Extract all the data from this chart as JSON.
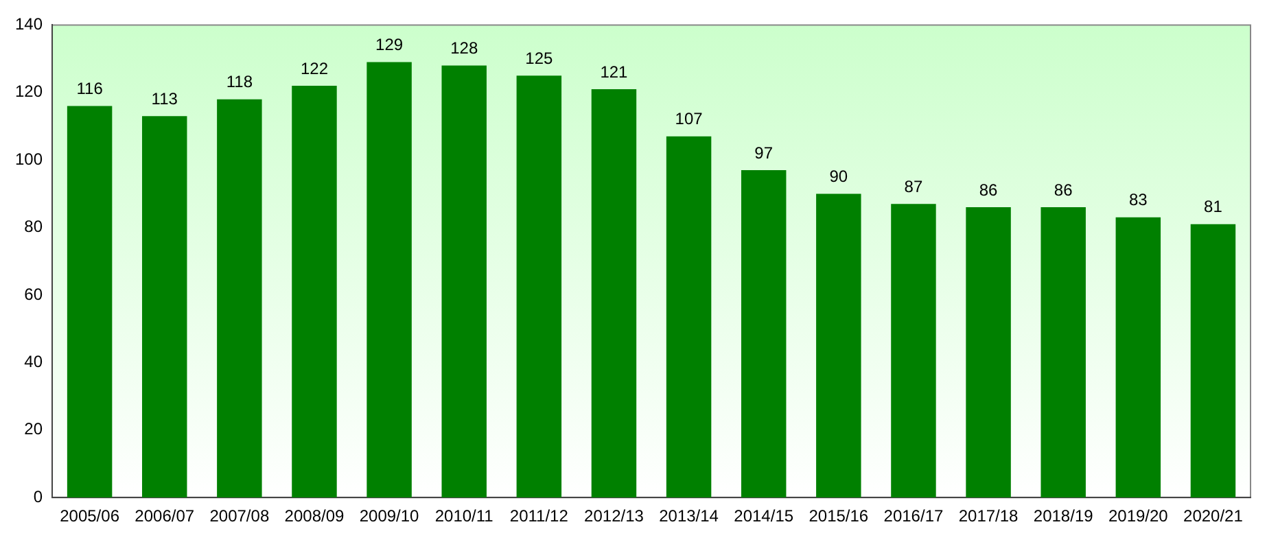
{
  "chart_data": {
    "type": "bar",
    "categories": [
      "2005/06",
      "2006/07",
      "2007/08",
      "2008/09",
      "2009/10",
      "2010/11",
      "2011/12",
      "2012/13",
      "2013/14",
      "2014/15",
      "2015/16",
      "2016/17",
      "2017/18",
      "2018/19",
      "2019/20",
      "2020/21"
    ],
    "values": [
      116,
      113,
      118,
      122,
      129,
      128,
      125,
      121,
      107,
      97,
      90,
      87,
      86,
      86,
      83,
      81
    ],
    "color": "#008000",
    "ylim": [
      0,
      140
    ],
    "yticks": [
      0,
      20,
      40,
      60,
      80,
      100,
      120,
      140
    ],
    "grid": false,
    "legend": false,
    "data_labels": true
  }
}
